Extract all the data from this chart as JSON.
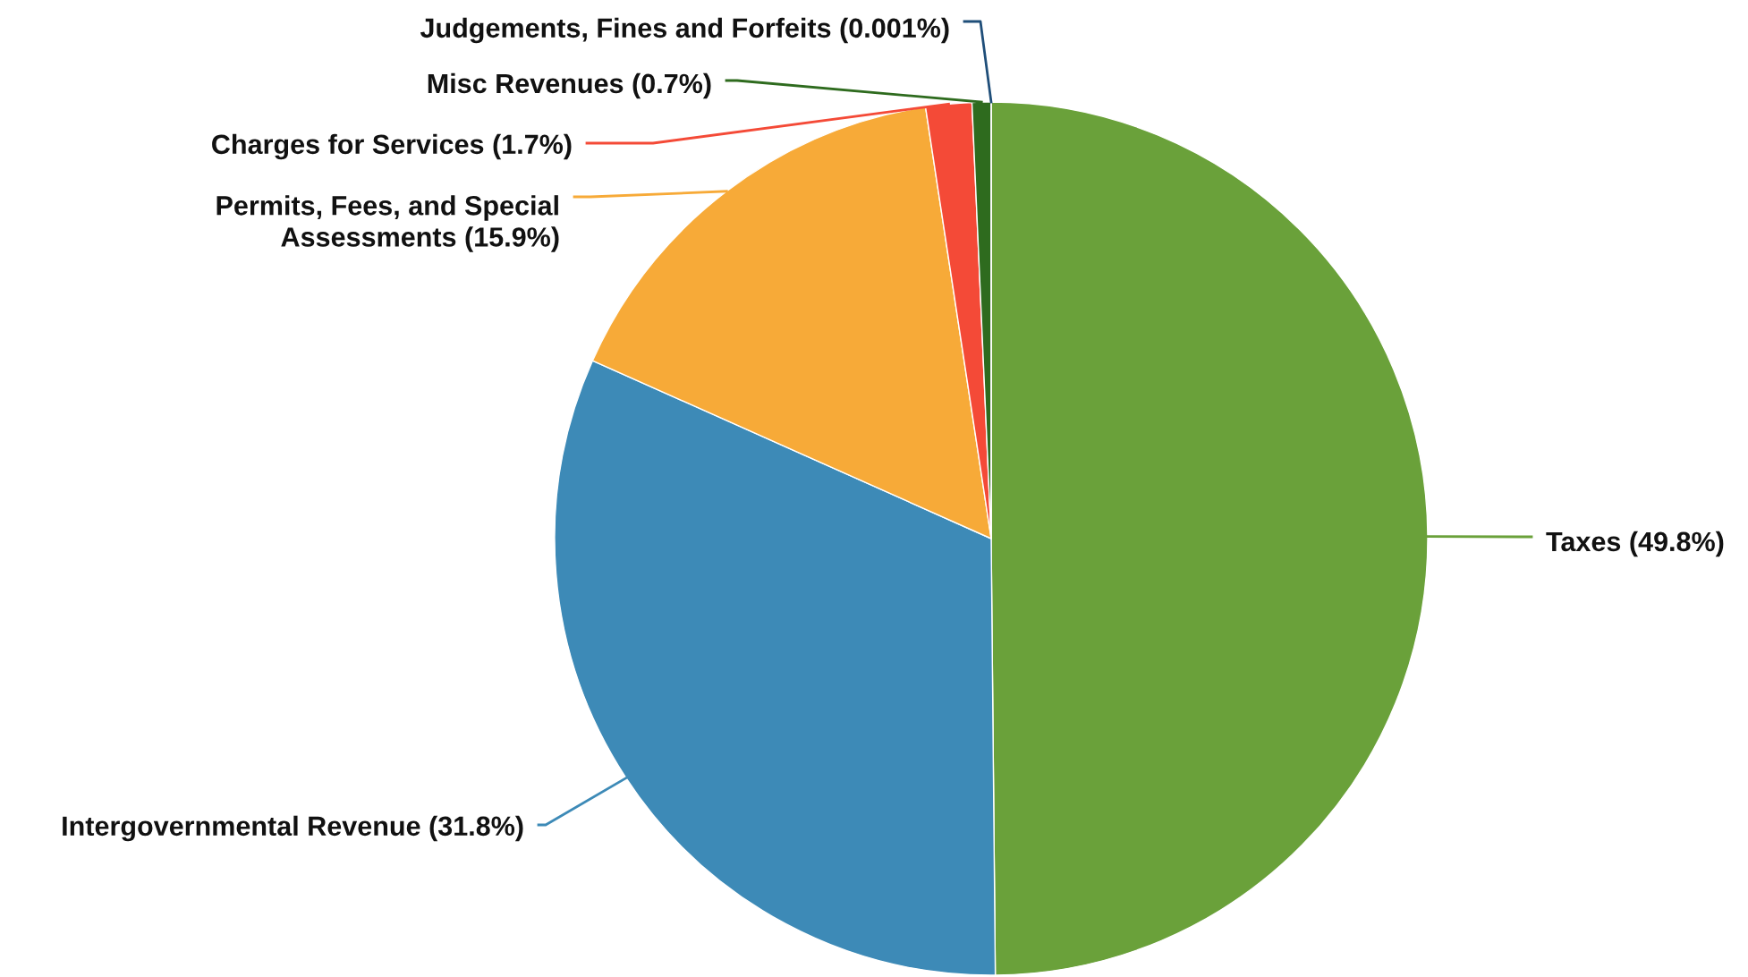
{
  "chart_data": {
    "type": "pie",
    "categories": [
      "Taxes (49.8%)",
      "Intergovernmental Revenue (31.8%)",
      "Permits, Fees, and Special\nAssessments (15.9%)",
      "Charges for Services (1.7%)",
      "Misc Revenues (0.7%)",
      "Judgements, Fines and Forfeits (0.001%)"
    ],
    "values": [
      49.8,
      31.8,
      15.9,
      1.7,
      0.7,
      0.001
    ],
    "colors": [
      "#6aa13a",
      "#3d8ab7",
      "#f7aa38",
      "#f44a37",
      "#2e6b1e",
      "#1f4e79"
    ],
    "legend": false
  }
}
